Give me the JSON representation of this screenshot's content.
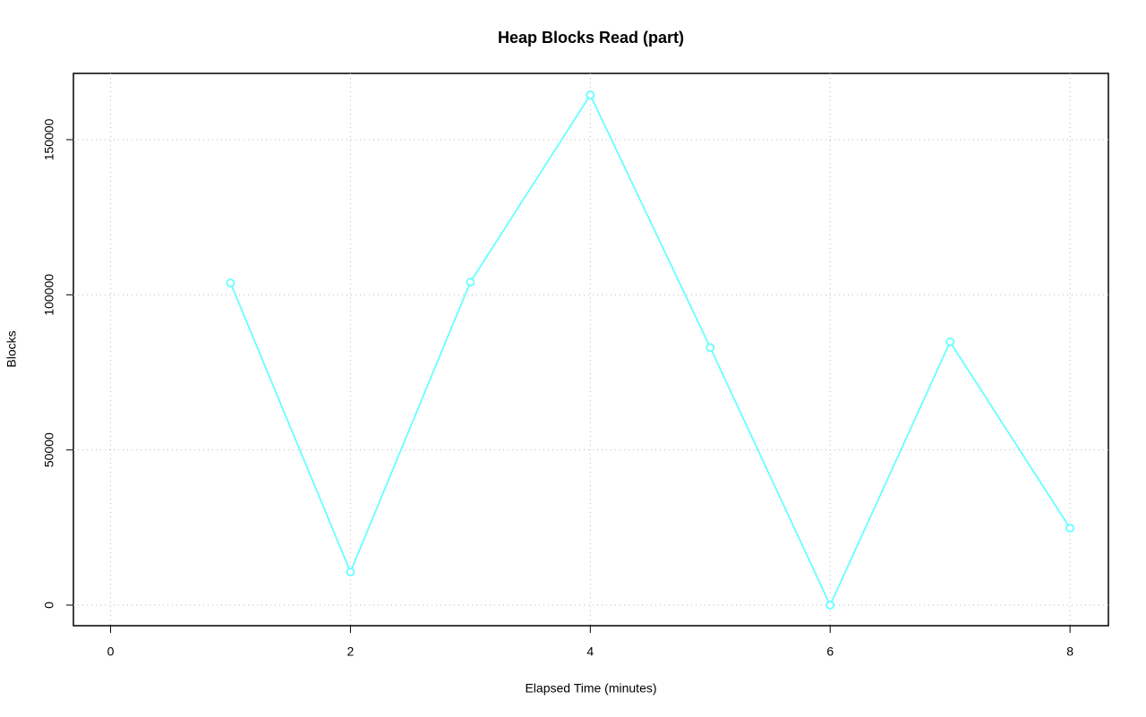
{
  "chart_data": {
    "type": "line",
    "title": "Heap Blocks Read (part)",
    "x_label": "Elapsed Time (minutes)",
    "y_label": "Blocks",
    "x": [
      1,
      2,
      3,
      4,
      5,
      6,
      7,
      8
    ],
    "series": [
      {
        "name": "Blocks",
        "color": "#66ffff",
        "values": [
          103800,
          10700,
          104100,
          164400,
          83000,
          0,
          84800,
          24800
        ]
      }
    ],
    "xlim": [
      -0.31,
      8.32
    ],
    "ylim": [
      -6635,
      171346
    ],
    "xticks": [
      0,
      2,
      4,
      6,
      8
    ],
    "yticks": [
      0,
      50000,
      100000,
      150000
    ],
    "grid": true
  }
}
